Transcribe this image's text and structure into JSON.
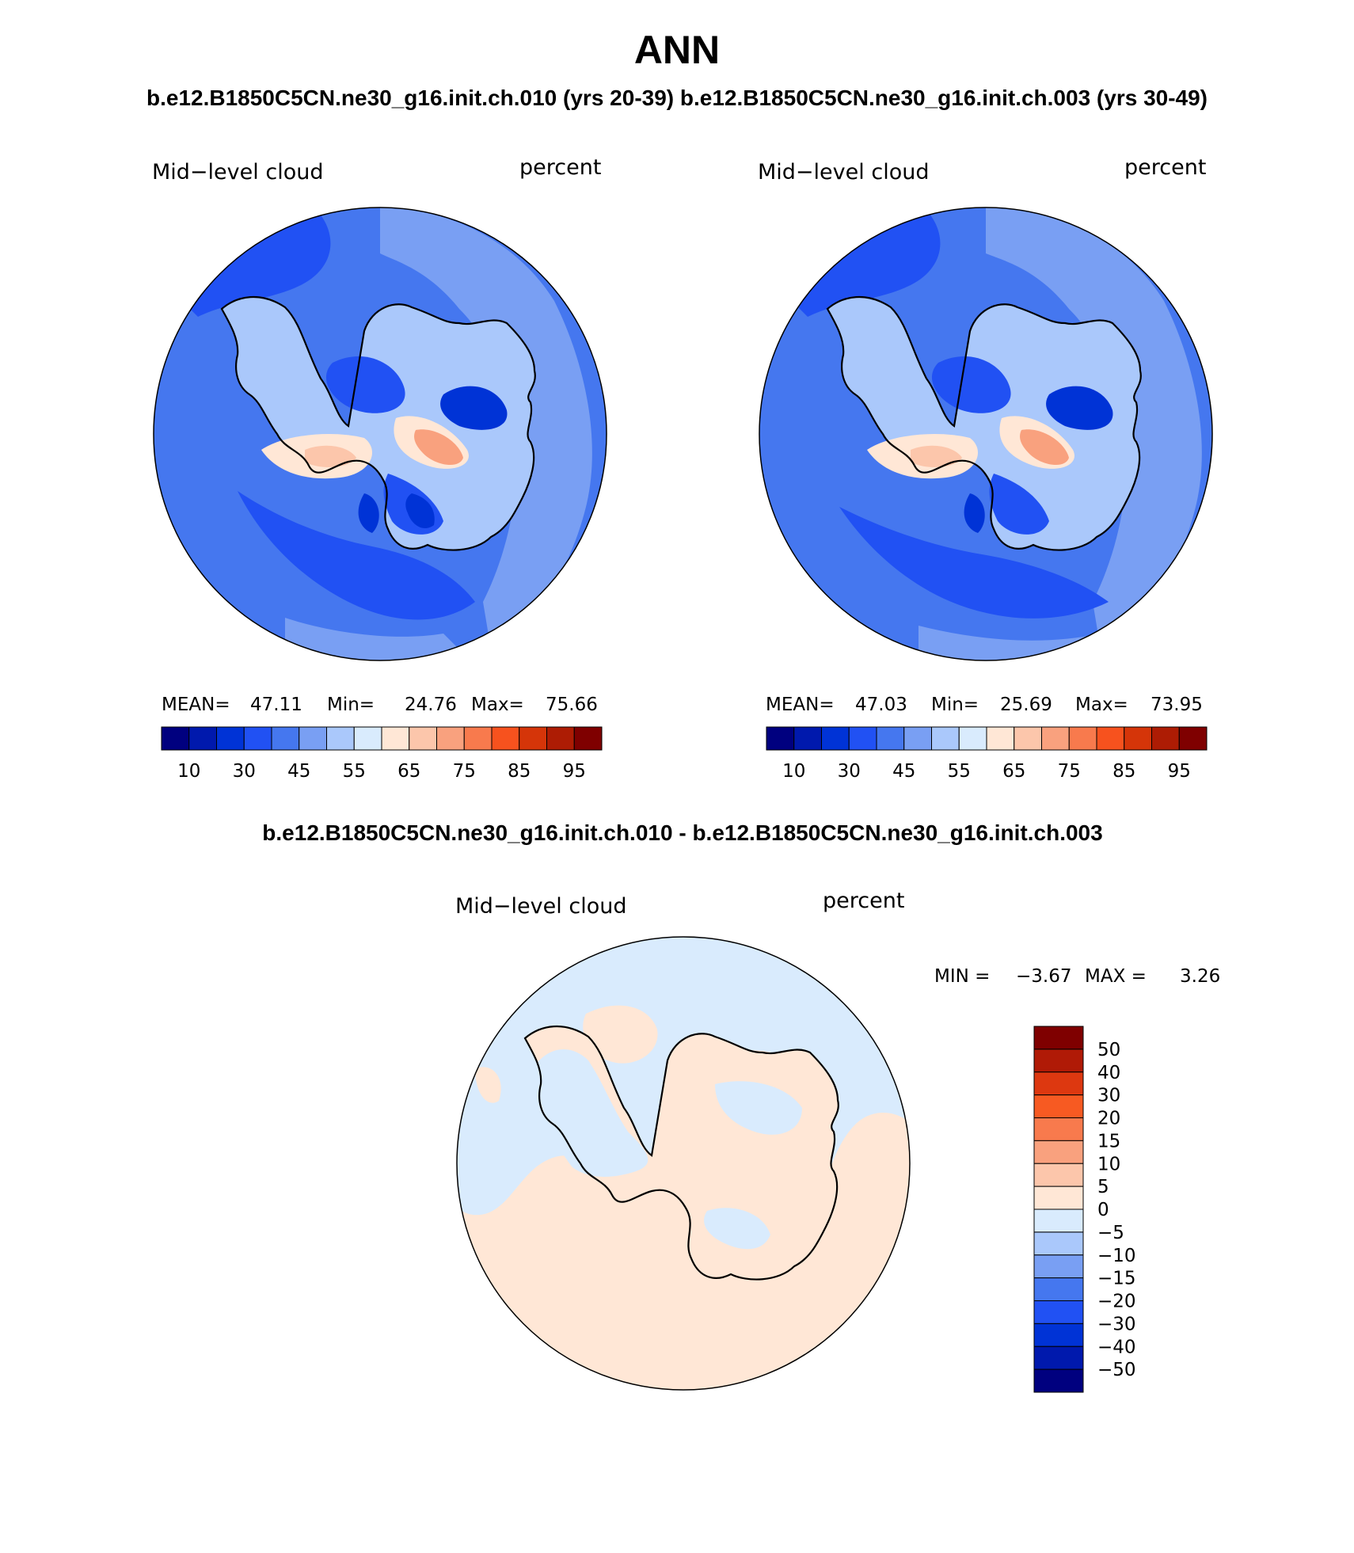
{
  "title": "ANN",
  "subtitle_top": "b.e12.B1850C5CN.ne30_g16.init.ch.010 (yrs 20-39) b.e12.B1850C5CN.ne30_g16.init.ch.003 (yrs 30-49)",
  "subtitle_diff": "b.e12.B1850C5CN.ne30_g16.init.ch.010 - b.e12.B1850C5CN.ne30_g16.init.ch.003",
  "panels": [
    {
      "variable": "Mid−level cloud",
      "units": "percent",
      "stats": {
        "mean_label": "MEAN=",
        "mean": "47.11",
        "min_label": "Min=",
        "min": "24.76",
        "max_label": "Max=",
        "max": "75.66"
      }
    },
    {
      "variable": "Mid−level cloud",
      "units": "percent",
      "stats": {
        "mean_label": "MEAN=",
        "mean": "47.03",
        "min_label": "Min=",
        "min": "25.69",
        "max_label": "Max=",
        "max": "73.95"
      }
    }
  ],
  "diff_panel": {
    "variable": "Mid−level cloud",
    "units": "percent",
    "minmax": {
      "min_label": "MIN =",
      "min": "−3.67",
      "max_label": "MAX =",
      "max": "3.26"
    }
  },
  "colorbar_top": {
    "colors": [
      "#00007f",
      "#0019ad",
      "#0033d6",
      "#2151f3",
      "#4577ef",
      "#799ff3",
      "#aac8fb",
      "#d9ebfd",
      "#ffe7d6",
      "#fcc6ab",
      "#f9a17e",
      "#f87a4d",
      "#f7521e",
      "#d53509",
      "#ad1c04",
      "#7f0000"
    ],
    "tick_labels": [
      "10",
      "30",
      "45",
      "55",
      "65",
      "75",
      "85",
      "95"
    ]
  },
  "colorbar_diff": {
    "colors_top_to_bottom": [
      "#7f0000",
      "#b01a06",
      "#dd3810",
      "#f75a22",
      "#f87a4d",
      "#f9a17e",
      "#fcc6ab",
      "#ffe7d6",
      "#d9ebfd",
      "#aac8fb",
      "#799ff3",
      "#4577ef",
      "#2151f3",
      "#0033d6",
      "#0019ad",
      "#00007f"
    ],
    "tick_labels": [
      "50",
      "40",
      "30",
      "20",
      "15",
      "10",
      "5",
      "0",
      "−5",
      "−10",
      "−15",
      "−20",
      "−30",
      "−40",
      "−50"
    ]
  }
}
